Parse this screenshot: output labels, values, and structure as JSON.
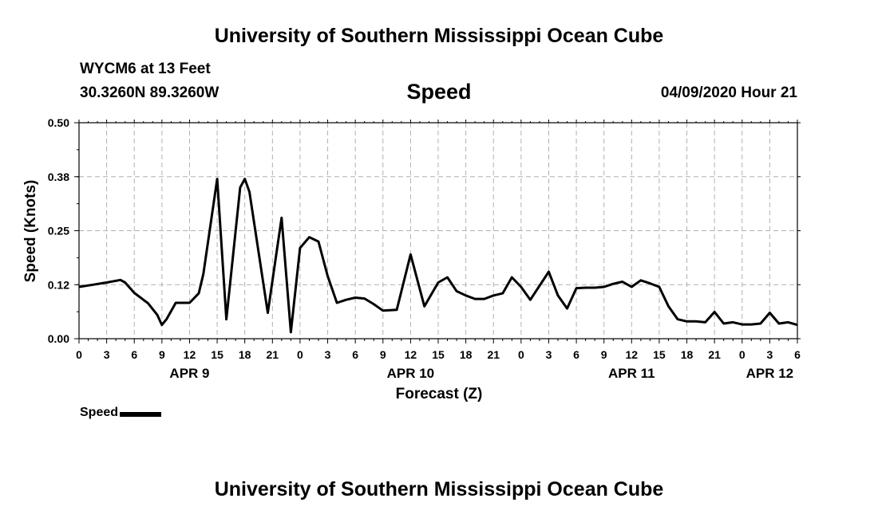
{
  "header": {
    "title": "University of Southern Mississippi Ocean Cube",
    "station": "WYCM6 at 13 Feet",
    "coordinates": "30.3260N 89.3260W",
    "datetime": "04/09/2020 Hour 21"
  },
  "footer": {
    "title": "University of Southern Mississippi Ocean Cube"
  },
  "chart_data": {
    "type": "line",
    "title": "Speed",
    "xlabel": "Forecast (Z)",
    "ylabel": "Speed (Knots)",
    "ylim": [
      0,
      0.5
    ],
    "xlim": [
      0,
      78
    ],
    "grid": true,
    "line_color": "#000000",
    "grid_color": "#b0b0b0",
    "y_ticks": [
      {
        "value": 0.0,
        "label": "0.00"
      },
      {
        "value": 0.125,
        "label": "0.12"
      },
      {
        "value": 0.25,
        "label": "0.25"
      },
      {
        "value": 0.375,
        "label": "0.38"
      },
      {
        "value": 0.5,
        "label": "0.50"
      }
    ],
    "x_ticks": [
      {
        "hour": 0,
        "label": "0"
      },
      {
        "hour": 3,
        "label": "3"
      },
      {
        "hour": 6,
        "label": "6"
      },
      {
        "hour": 9,
        "label": "9"
      },
      {
        "hour": 12,
        "label": "12"
      },
      {
        "hour": 15,
        "label": "15"
      },
      {
        "hour": 18,
        "label": "18"
      },
      {
        "hour": 21,
        "label": "21"
      },
      {
        "hour": 24,
        "label": "0"
      },
      {
        "hour": 27,
        "label": "3"
      },
      {
        "hour": 30,
        "label": "6"
      },
      {
        "hour": 33,
        "label": "9"
      },
      {
        "hour": 36,
        "label": "12"
      },
      {
        "hour": 39,
        "label": "15"
      },
      {
        "hour": 42,
        "label": "18"
      },
      {
        "hour": 45,
        "label": "21"
      },
      {
        "hour": 48,
        "label": "0"
      },
      {
        "hour": 51,
        "label": "3"
      },
      {
        "hour": 54,
        "label": "6"
      },
      {
        "hour": 57,
        "label": "9"
      },
      {
        "hour": 60,
        "label": "12"
      },
      {
        "hour": 63,
        "label": "15"
      },
      {
        "hour": 66,
        "label": "18"
      },
      {
        "hour": 69,
        "label": "21"
      },
      {
        "hour": 72,
        "label": "0"
      },
      {
        "hour": 75,
        "label": "3"
      },
      {
        "hour": 78,
        "label": "6"
      }
    ],
    "date_labels": [
      {
        "hour": 12,
        "label": "APR 9"
      },
      {
        "hour": 36,
        "label": "APR 10"
      },
      {
        "hour": 60,
        "label": "APR 11"
      },
      {
        "hour": 75,
        "label": "APR 12"
      }
    ],
    "series": [
      {
        "name": "Speed",
        "x": [
          0,
          1.5,
          3,
          4.5,
          5,
          6,
          7.5,
          8.5,
          9,
          9.5,
          10.5,
          12,
          13,
          13.5,
          15,
          16,
          17.5,
          18,
          18.5,
          20.5,
          22,
          23,
          24,
          25,
          26,
          27,
          28,
          29,
          30,
          31,
          32,
          33,
          34.5,
          36,
          37.5,
          39,
          40,
          41,
          42,
          43,
          44,
          45,
          46,
          47,
          48,
          49,
          51,
          52,
          53,
          54,
          55,
          56,
          57,
          58,
          59,
          60,
          61,
          62,
          63,
          64,
          65,
          66,
          67,
          68,
          69,
          70,
          71,
          72,
          73,
          74,
          75,
          76,
          77,
          78
        ],
        "y": [
          0.12,
          0.125,
          0.13,
          0.136,
          0.13,
          0.106,
          0.082,
          0.055,
          0.032,
          0.045,
          0.083,
          0.083,
          0.105,
          0.15,
          0.37,
          0.045,
          0.35,
          0.37,
          0.34,
          0.06,
          0.28,
          0.015,
          0.21,
          0.235,
          0.225,
          0.145,
          0.083,
          0.09,
          0.095,
          0.093,
          0.08,
          0.065,
          0.067,
          0.195,
          0.075,
          0.13,
          0.142,
          0.11,
          0.1,
          0.092,
          0.092,
          0.1,
          0.105,
          0.142,
          0.12,
          0.09,
          0.155,
          0.1,
          0.07,
          0.117,
          0.118,
          0.118,
          0.12,
          0.127,
          0.132,
          0.12,
          0.135,
          0.128,
          0.12,
          0.075,
          0.045,
          0.04,
          0.04,
          0.038,
          0.062,
          0.035,
          0.038,
          0.033,
          0.033,
          0.035,
          0.06,
          0.035,
          0.038,
          0.032
        ]
      }
    ]
  },
  "legend": {
    "label": "Speed"
  }
}
